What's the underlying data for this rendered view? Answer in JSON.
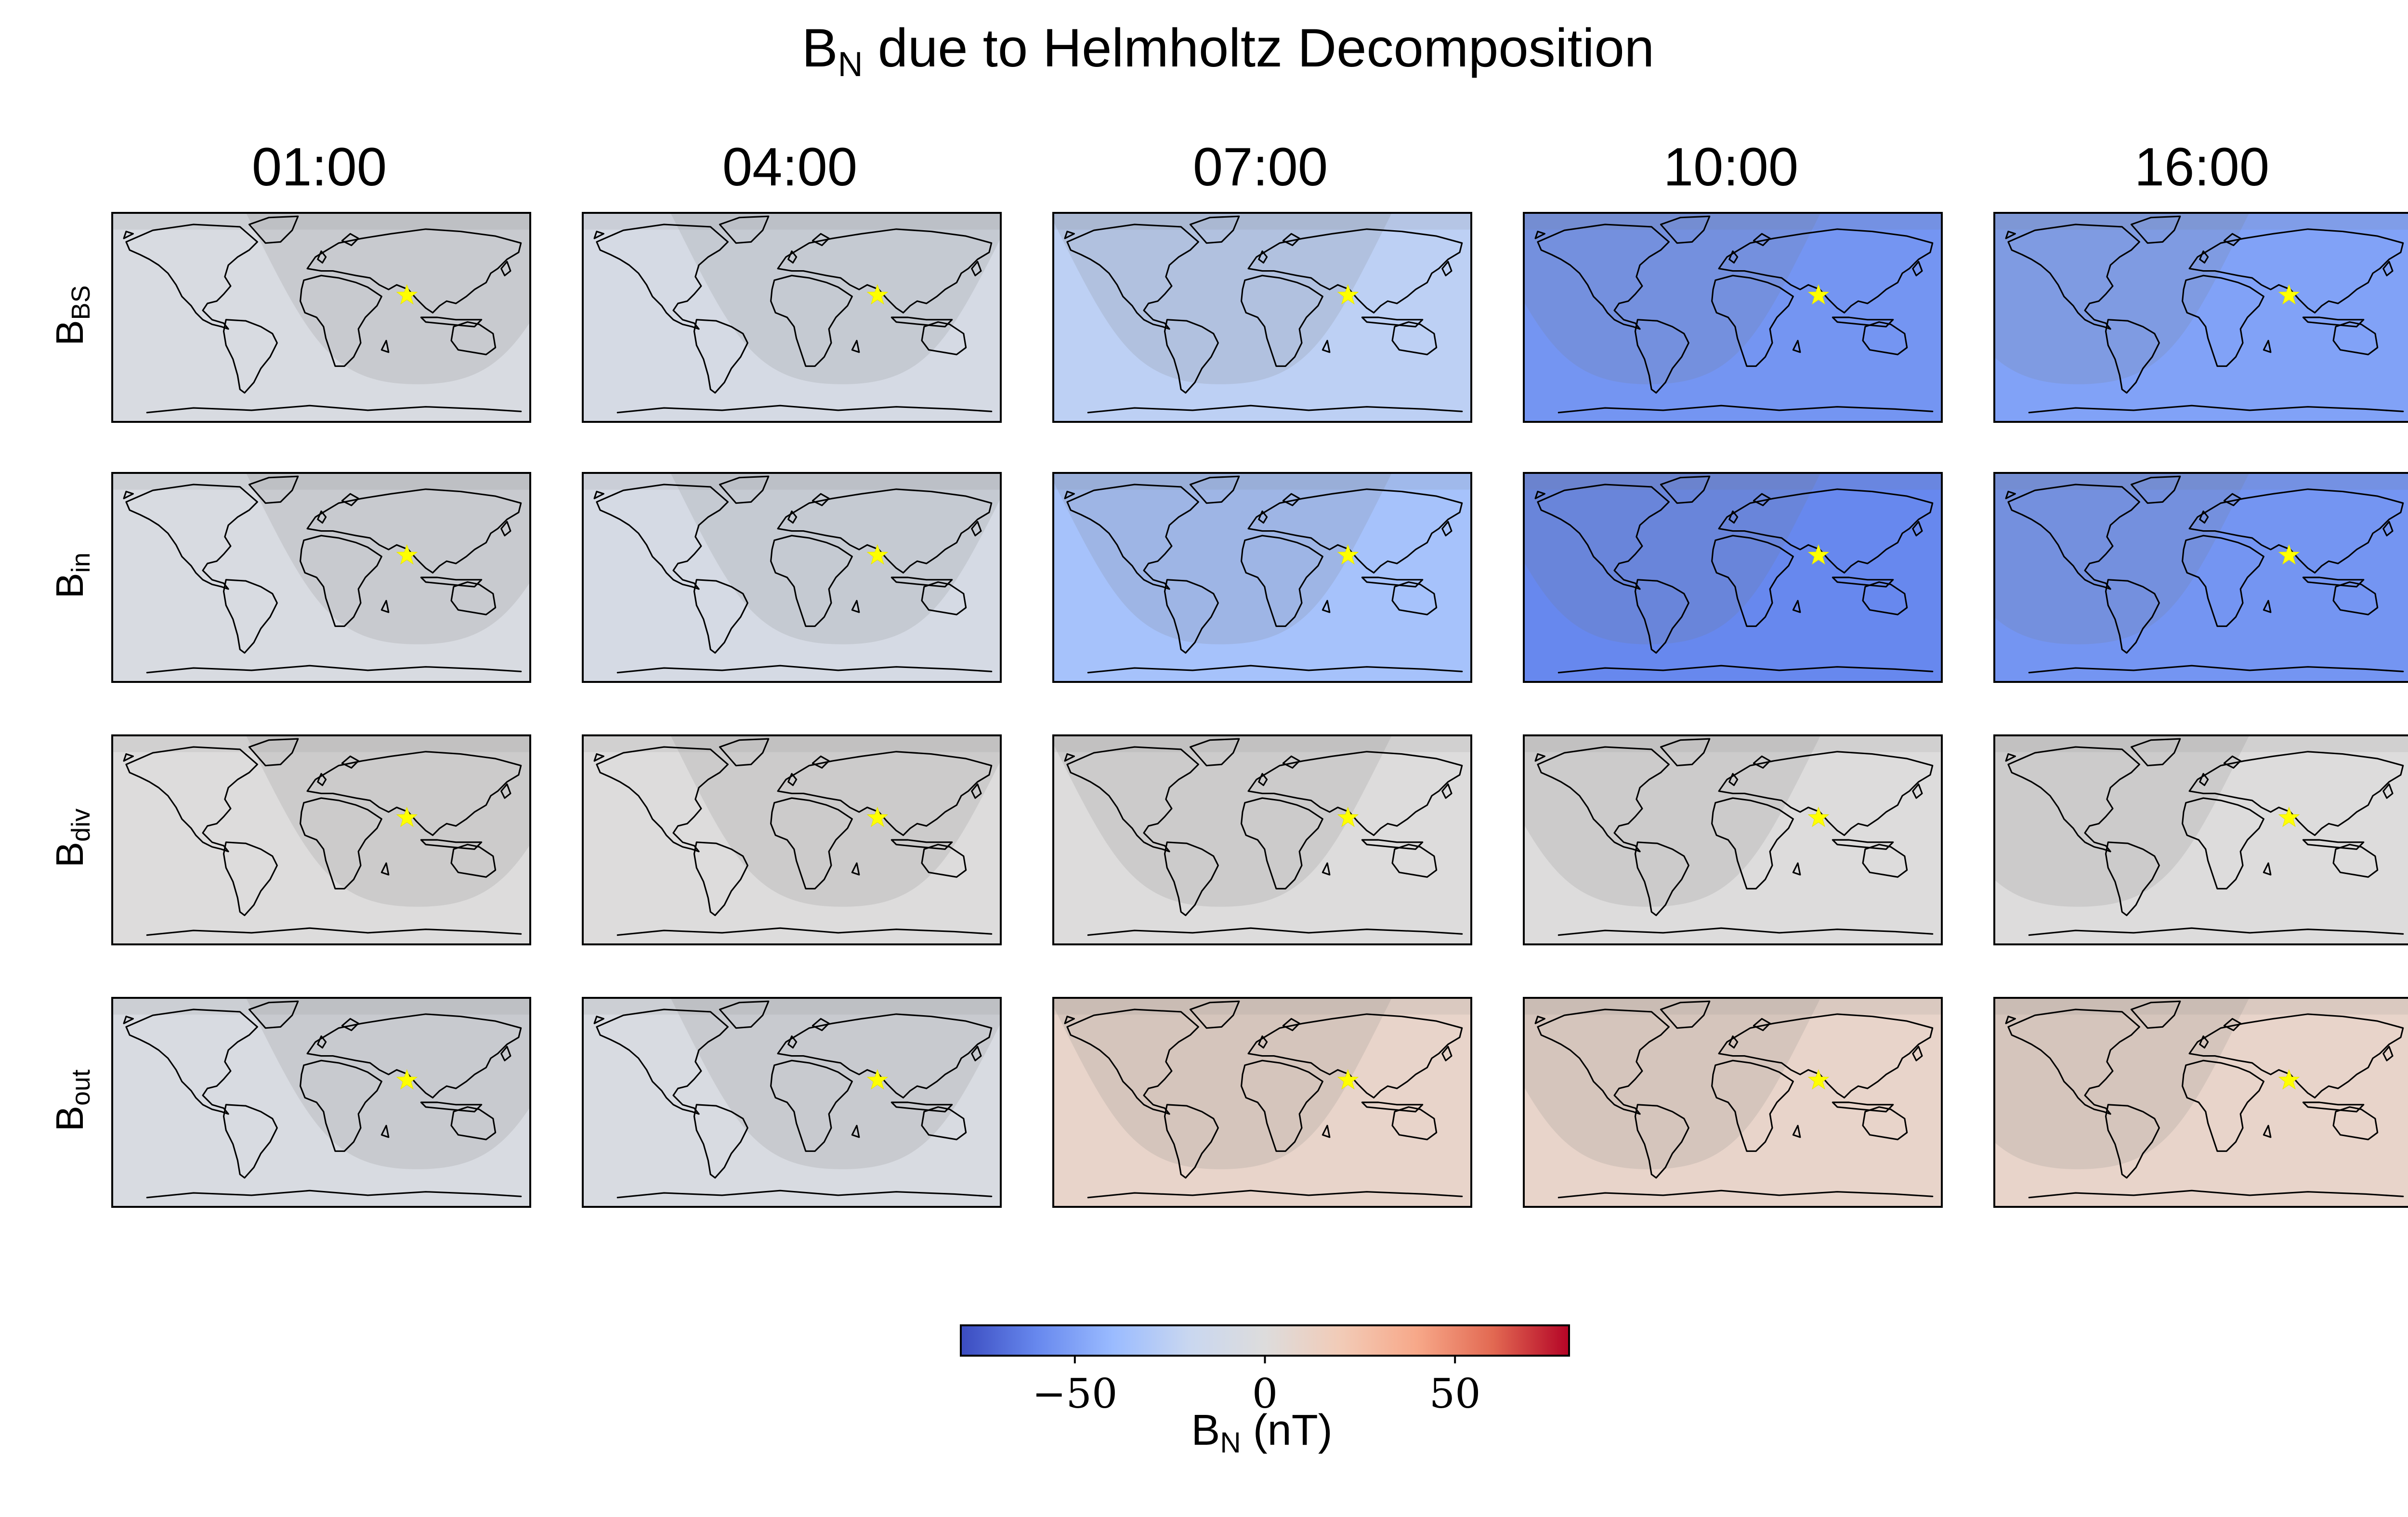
{
  "figure": {
    "title_main": "B",
    "title_sub": "N",
    "title_rest": " due to Helmholtz Decomposition"
  },
  "chart_data": {
    "type": "heatmap",
    "columns": [
      "01:00",
      "04:00",
      "07:00",
      "10:00",
      "16:00"
    ],
    "rows": [
      {
        "main": "B",
        "sub": "BS"
      },
      {
        "main": "B",
        "sub": "in"
      },
      {
        "main": "B",
        "sub": "div"
      },
      {
        "main": "B",
        "sub": "out"
      }
    ],
    "approx_field_nT": [
      [
        -5,
        -8,
        -25,
        -55,
        -50
      ],
      [
        -5,
        -8,
        -35,
        -60,
        -55
      ],
      [
        0,
        0,
        0,
        0,
        0
      ],
      [
        -5,
        -5,
        10,
        10,
        10
      ]
    ],
    "marker": {
      "symbol": "star",
      "color": "#ffff00"
    },
    "night_shading": true,
    "colorbar": {
      "label_main": "B",
      "label_sub": "N",
      "label_rest": " (nT)",
      "range": [
        -80,
        80
      ],
      "ticks": [
        -50,
        0,
        50
      ],
      "tick_labels": [
        "−50",
        "0",
        "50"
      ],
      "colormap": "coolwarm",
      "stops": [
        "#3b4cc0",
        "#6788ee",
        "#9abbff",
        "#c9d7f0",
        "#dddcdc",
        "#f2cbb7",
        "#f7a889",
        "#e26952",
        "#b40426"
      ]
    }
  }
}
